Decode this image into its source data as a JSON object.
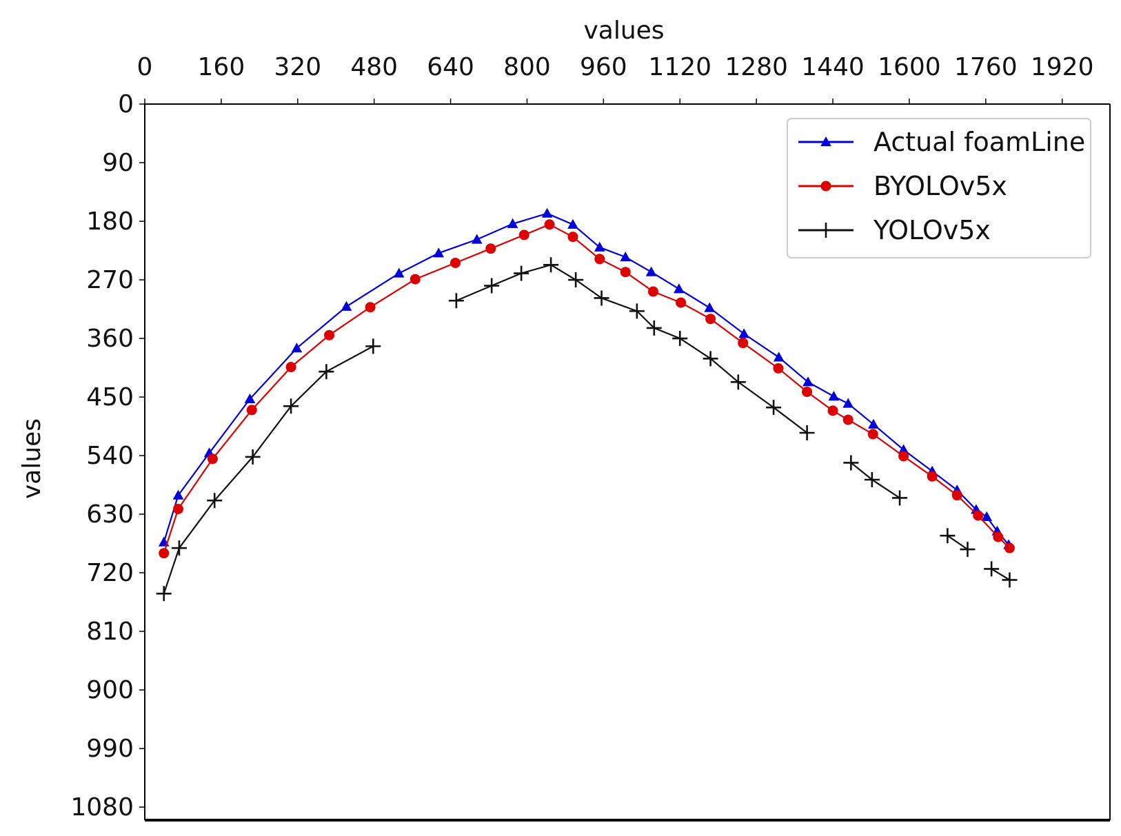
{
  "chart_data": {
    "type": "line",
    "title": "",
    "xlabel": "values",
    "ylabel": "values",
    "xaxis_position": "top",
    "yaxis_inverted": true,
    "xlim": [
      0,
      2020
    ],
    "ylim": [
      0,
      1100
    ],
    "xticks": [
      0,
      160,
      320,
      480,
      640,
      800,
      960,
      1120,
      1280,
      1440,
      1600,
      1760,
      1920
    ],
    "yticks": [
      0,
      90,
      180,
      270,
      360,
      450,
      540,
      630,
      720,
      810,
      900,
      990,
      1080
    ],
    "legend_position": "top-right",
    "series": [
      {
        "name": "Actual foamLine",
        "color": "#0000dd",
        "marker": "triangle",
        "segments": [
          [
            [
              40,
              673
            ],
            [
              70,
              601
            ],
            [
              135,
              536
            ],
            [
              220,
              453
            ],
            [
              318,
              375
            ],
            [
              422,
              311
            ],
            [
              532,
              260
            ],
            [
              615,
              229
            ],
            [
              695,
              208
            ],
            [
              770,
              184
            ],
            [
              842,
              168
            ],
            [
              896,
              185
            ],
            [
              952,
              220
            ],
            [
              1006,
              235
            ],
            [
              1060,
              258
            ],
            [
              1118,
              284
            ],
            [
              1182,
              313
            ],
            [
              1254,
              353
            ],
            [
              1327,
              389
            ],
            [
              1388,
              427
            ],
            [
              1442,
              449
            ],
            [
              1472,
              460
            ],
            [
              1525,
              492
            ],
            [
              1588,
              531
            ],
            [
              1648,
              564
            ],
            [
              1700,
              593
            ],
            [
              1740,
              623
            ],
            [
              1762,
              634
            ],
            [
              1784,
              656
            ],
            [
              1808,
              677
            ]
          ]
        ]
      },
      {
        "name": "BYOLOv5x",
        "color": "#dd0000",
        "marker": "circle",
        "segments": [
          [
            [
              40,
              690
            ],
            [
              70,
              622
            ],
            [
              142,
              545
            ],
            [
              224,
              470
            ],
            [
              306,
              404
            ],
            [
              386,
              355
            ],
            [
              472,
              312
            ],
            [
              566,
              269
            ],
            [
              650,
              244
            ],
            [
              724,
              222
            ],
            [
              794,
              201
            ],
            [
              847,
              185
            ],
            [
              896,
              204
            ],
            [
              952,
              238
            ],
            [
              1006,
              258
            ],
            [
              1064,
              288
            ],
            [
              1122,
              305
            ],
            [
              1184,
              330
            ],
            [
              1252,
              367
            ],
            [
              1326,
              406
            ],
            [
              1386,
              442
            ],
            [
              1440,
              471
            ],
            [
              1472,
              485
            ],
            [
              1524,
              507
            ],
            [
              1588,
              541
            ],
            [
              1648,
              572
            ],
            [
              1700,
              601
            ],
            [
              1744,
              632
            ],
            [
              1786,
              665
            ],
            [
              1810,
              682
            ]
          ]
        ]
      },
      {
        "name": "YOLOv5x",
        "color": "#111111",
        "marker": "plus",
        "segments": [
          [
            [
              40,
              752
            ],
            [
              72,
              682
            ],
            [
              146,
              609
            ],
            [
              226,
              542
            ],
            [
              306,
              464
            ],
            [
              380,
              411
            ],
            [
              478,
              372
            ]
          ],
          [
            [
              652,
              302
            ],
            [
              726,
              279
            ],
            [
              788,
              260
            ],
            [
              850,
              247
            ],
            [
              902,
              270
            ],
            [
              956,
              298
            ],
            [
              1030,
              318
            ],
            [
              1066,
              344
            ],
            [
              1120,
              360
            ],
            [
              1184,
              391
            ],
            [
              1242,
              427
            ],
            [
              1316,
              466
            ],
            [
              1386,
              505
            ]
          ],
          [
            [
              1478,
              551
            ],
            [
              1522,
              577
            ],
            [
              1580,
              605
            ]
          ],
          [
            [
              1680,
              663
            ],
            [
              1722,
              684
            ]
          ],
          [
            [
              1772,
              714
            ],
            [
              1810,
              731
            ]
          ]
        ]
      }
    ]
  }
}
